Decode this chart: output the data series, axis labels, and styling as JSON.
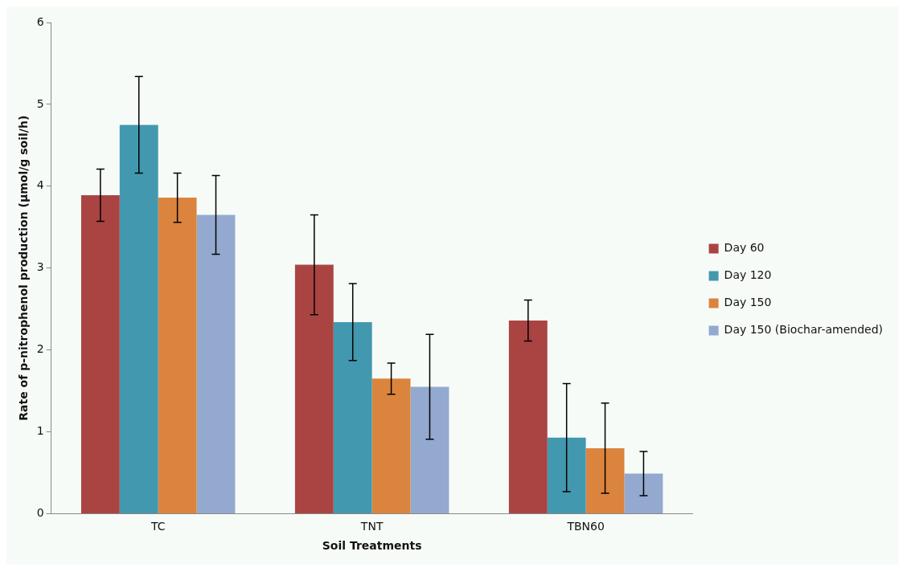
{
  "chart_data": {
    "type": "bar",
    "xlabel": "Soil Treatments",
    "ylabel": "Rate of p-nitrophenol production (μmol/g soil/h)",
    "categories": [
      "TC",
      "TNT",
      "TBN60"
    ],
    "series": [
      {
        "name": "Day 60",
        "color": "#a94443",
        "values": [
          3.89,
          3.04,
          2.36
        ],
        "errors": [
          0.32,
          0.61,
          0.25
        ]
      },
      {
        "name": "Day 120",
        "color": "#4298af",
        "values": [
          4.75,
          2.34,
          0.93
        ],
        "errors": [
          0.59,
          0.47,
          0.66
        ]
      },
      {
        "name": "Day 150",
        "color": "#db843d",
        "values": [
          3.86,
          1.65,
          0.8
        ],
        "errors": [
          0.3,
          0.19,
          0.55
        ]
      },
      {
        "name": "Day 150 (Biochar-amended)",
        "color": "#93a9cf",
        "values": [
          3.65,
          1.55,
          0.49
        ],
        "errors": [
          0.48,
          0.64,
          0.27
        ]
      }
    ],
    "ylim": [
      0,
      6
    ],
    "yticks": [
      0,
      1,
      2,
      3,
      4,
      5,
      6
    ],
    "grid": false,
    "legend": "right"
  }
}
